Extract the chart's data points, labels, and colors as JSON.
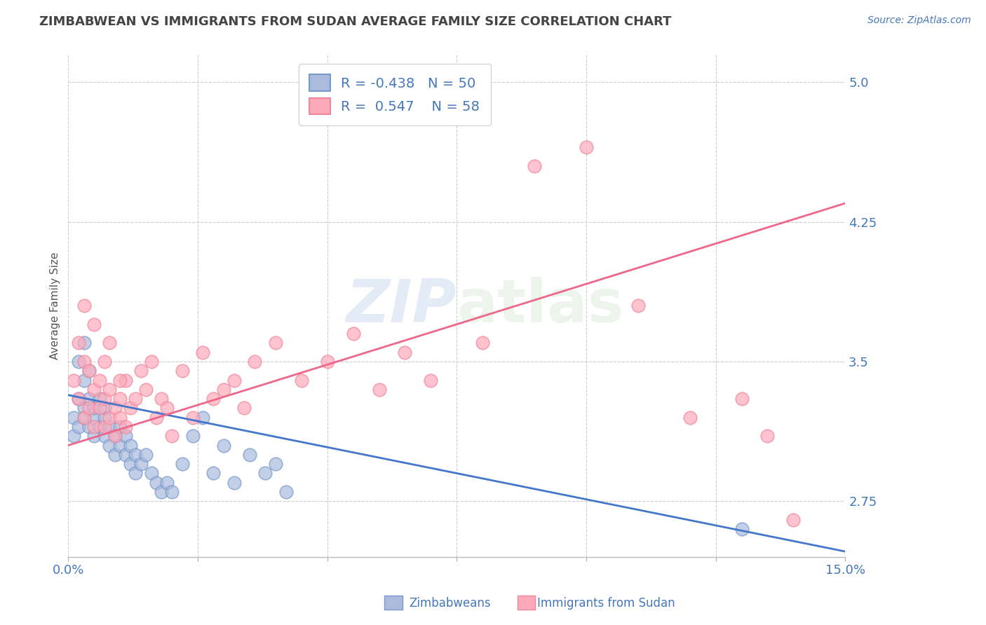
{
  "title": "ZIMBABWEAN VS IMMIGRANTS FROM SUDAN AVERAGE FAMILY SIZE CORRELATION CHART",
  "source": "Source: ZipAtlas.com",
  "ylabel": "Average Family Size",
  "xlim": [
    0.0,
    0.15
  ],
  "ylim": [
    2.45,
    5.15
  ],
  "yticks": [
    2.75,
    3.5,
    4.25,
    5.0
  ],
  "xticks": [
    0.0,
    0.025,
    0.05,
    0.075,
    0.1,
    0.125,
    0.15
  ],
  "xticklabels": [
    "0.0%",
    "",
    "",
    "",
    "",
    "",
    "15.0%"
  ],
  "background_color": "#ffffff",
  "grid_color": "#cccccc",
  "blue_line_color": "#4477cc",
  "pink_line_color": "#ee6688",
  "blue_marker_face": "#aabbdd",
  "blue_marker_edge": "#7799cc",
  "pink_marker_face": "#ffaabb",
  "pink_marker_edge": "#ee8899",
  "axis_color": "#4477bb",
  "title_color": "#444444",
  "R_blue": -0.438,
  "N_blue": 50,
  "R_pink": 0.547,
  "N_pink": 58,
  "blue_trend_x": [
    0.0,
    0.15
  ],
  "blue_trend_y": [
    3.32,
    2.48
  ],
  "pink_trend_x": [
    0.0,
    0.15
  ],
  "pink_trend_y": [
    3.05,
    4.35
  ],
  "blue_scatter_x": [
    0.001,
    0.001,
    0.002,
    0.002,
    0.002,
    0.003,
    0.003,
    0.003,
    0.003,
    0.004,
    0.004,
    0.004,
    0.005,
    0.005,
    0.005,
    0.006,
    0.006,
    0.007,
    0.007,
    0.007,
    0.008,
    0.008,
    0.009,
    0.009,
    0.01,
    0.01,
    0.011,
    0.011,
    0.012,
    0.012,
    0.013,
    0.013,
    0.014,
    0.015,
    0.016,
    0.017,
    0.018,
    0.019,
    0.02,
    0.022,
    0.024,
    0.026,
    0.028,
    0.03,
    0.032,
    0.035,
    0.038,
    0.04,
    0.042,
    0.13
  ],
  "blue_scatter_y": [
    3.2,
    3.1,
    3.5,
    3.3,
    3.15,
    3.6,
    3.25,
    3.4,
    3.2,
    3.45,
    3.15,
    3.3,
    3.2,
    3.1,
    3.25,
    3.15,
    3.3,
    3.2,
    3.1,
    3.25,
    3.15,
    3.05,
    3.1,
    3.0,
    3.15,
    3.05,
    3.1,
    3.0,
    3.05,
    2.95,
    3.0,
    2.9,
    2.95,
    3.0,
    2.9,
    2.85,
    2.8,
    2.85,
    2.8,
    2.95,
    3.1,
    3.2,
    2.9,
    3.05,
    2.85,
    3.0,
    2.9,
    2.95,
    2.8,
    2.6
  ],
  "pink_scatter_x": [
    0.001,
    0.002,
    0.002,
    0.003,
    0.003,
    0.004,
    0.004,
    0.005,
    0.005,
    0.006,
    0.006,
    0.007,
    0.007,
    0.008,
    0.008,
    0.009,
    0.009,
    0.01,
    0.01,
    0.011,
    0.011,
    0.012,
    0.013,
    0.014,
    0.015,
    0.016,
    0.017,
    0.018,
    0.019,
    0.02,
    0.022,
    0.024,
    0.026,
    0.028,
    0.03,
    0.032,
    0.034,
    0.036,
    0.04,
    0.045,
    0.05,
    0.055,
    0.06,
    0.065,
    0.07,
    0.08,
    0.09,
    0.1,
    0.11,
    0.12,
    0.003,
    0.005,
    0.007,
    0.008,
    0.01,
    0.13,
    0.135,
    0.14
  ],
  "pink_scatter_y": [
    3.4,
    3.3,
    3.6,
    3.5,
    3.2,
    3.45,
    3.25,
    3.35,
    3.15,
    3.4,
    3.25,
    3.3,
    3.15,
    3.35,
    3.2,
    3.1,
    3.25,
    3.3,
    3.2,
    3.15,
    3.4,
    3.25,
    3.3,
    3.45,
    3.35,
    3.5,
    3.2,
    3.3,
    3.25,
    3.1,
    3.45,
    3.2,
    3.55,
    3.3,
    3.35,
    3.4,
    3.25,
    3.5,
    3.6,
    3.4,
    3.5,
    3.65,
    3.35,
    3.55,
    3.4,
    3.6,
    4.55,
    4.65,
    3.8,
    3.2,
    3.8,
    3.7,
    3.5,
    3.6,
    3.4,
    3.3,
    3.1,
    2.65
  ]
}
